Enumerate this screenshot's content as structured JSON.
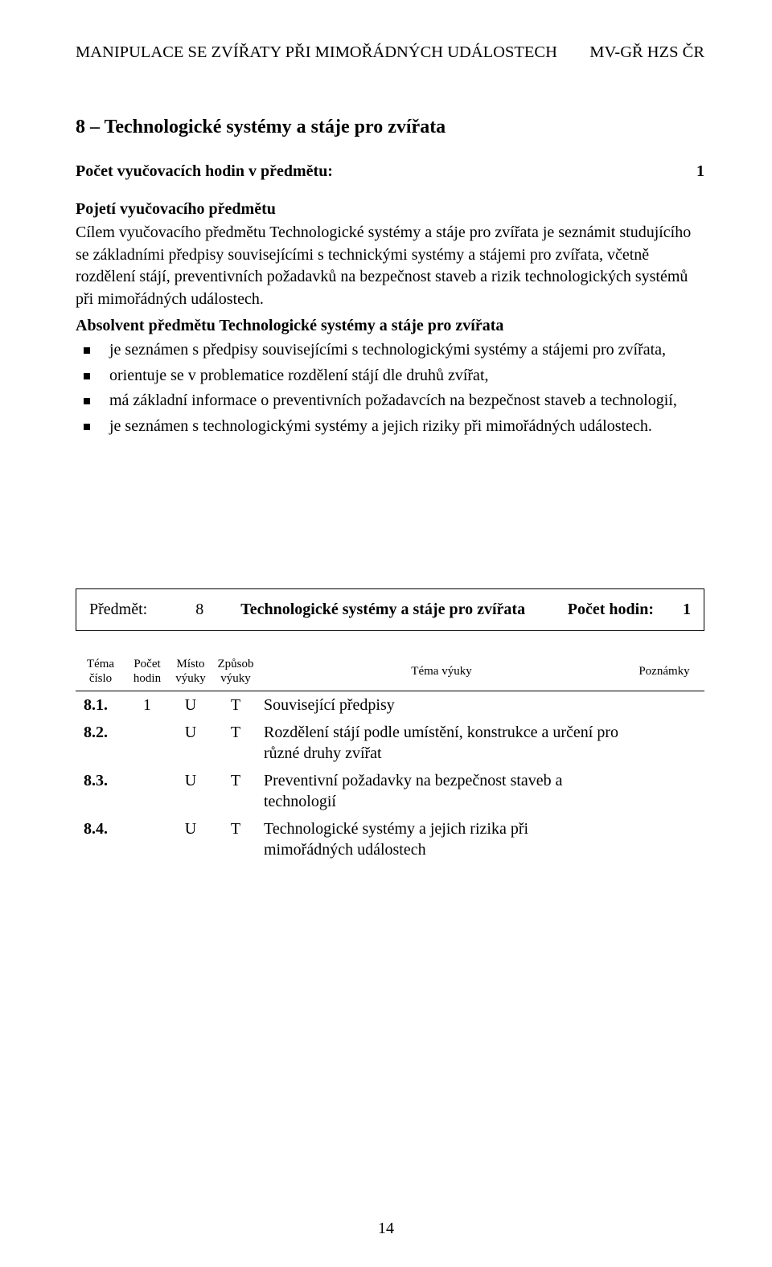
{
  "header": {
    "left": "MANIPULACE SE ZVÍŘATY PŘI MIMOŘÁDNÝCH UDÁLOSTECH",
    "right": "MV-GŘ HZS ČR"
  },
  "section": {
    "title": "8 – Technologické systémy a stáje pro zvířata",
    "hours_label": "Počet vyučovacích hodin v předmětu:",
    "hours_value": "1",
    "subheading": "Pojetí vyučovacího předmětu",
    "body": "Cílem vyučovacího předmětu Technologické systémy a stáje pro zvířata je seznámit studujícího se základními předpisy souvisejícími s technickými systémy a stájemi pro zvířata, včetně rozdělení stájí, preventivních požadavků na bezpečnost staveb a rizik technologických systémů při mimořádných událostech.",
    "lead": "Absolvent předmětu Technologické systémy a stáje pro zvířata",
    "bullets": [
      "je seznámen s předpisy souvisejícími s technologickými systémy a stájemi pro zvířata,",
      "orientuje se v problematice rozdělení stájí dle druhů zvířat,",
      "má základní informace o preventivních požadavcích na bezpečnost staveb a technologií,",
      "je seznámen s technologickými systémy a jejich riziky při mimořádných událostech."
    ]
  },
  "subject_box": {
    "label": "Předmět:",
    "number": "8",
    "name": "Technologické systémy a stáje pro zvířata",
    "hours_label": "Počet hodin:",
    "hours_value": "1"
  },
  "table": {
    "headers": {
      "tema_cislo": "Téma číslo",
      "pocet_hodin": "Počet hodin",
      "misto": "Místo výuky",
      "zpusob": "Způsob výuky",
      "tema_vyuky": "Téma výuky",
      "poznamky": "Poznámky"
    },
    "rows": [
      {
        "cislo": "8.1.",
        "hodin": "1",
        "misto": "U",
        "zpusob": "T",
        "tema": "Související předpisy",
        "pozn": ""
      },
      {
        "cislo": "8.2.",
        "hodin": "",
        "misto": "U",
        "zpusob": "T",
        "tema": "Rozdělení stájí podle umístění, konstrukce a určení pro různé druhy zvířat",
        "pozn": ""
      },
      {
        "cislo": "8.3.",
        "hodin": "",
        "misto": "U",
        "zpusob": "T",
        "tema": "Preventivní požadavky na bezpečnost staveb a technologií",
        "pozn": ""
      },
      {
        "cislo": "8.4.",
        "hodin": "",
        "misto": "U",
        "zpusob": "T",
        "tema": "Technologické systémy a jejich rizika při mimořádných událostech",
        "pozn": ""
      }
    ]
  },
  "page_number": "14"
}
